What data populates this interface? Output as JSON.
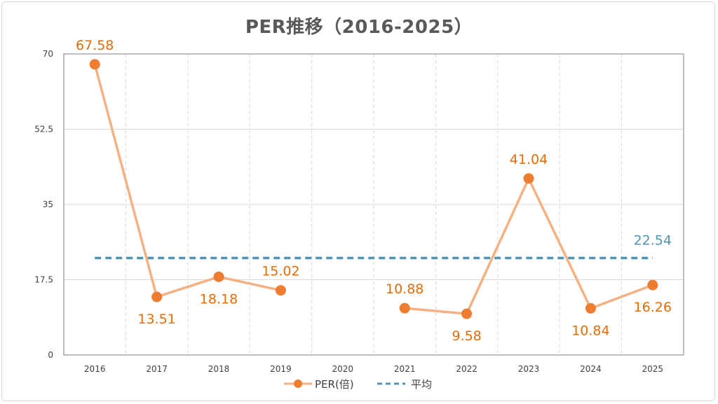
{
  "title": "PER推移（2016-2025）",
  "colors": {
    "line": "#f4b183",
    "marker": "#ed7d31",
    "label": "#e46c0a",
    "average": "#4f93b0",
    "grid": "#d9d9d9",
    "plot_border": "#7f7f7f"
  },
  "chart_data": {
    "type": "line",
    "title": "PER推移（2016-2025）",
    "categories": [
      "2016",
      "2017",
      "2018",
      "2019",
      "2020",
      "2021",
      "2022",
      "2023",
      "2024",
      "2025"
    ],
    "y_ticks": [
      "0",
      "17.5",
      "35",
      "52.5",
      "70"
    ],
    "ylim": [
      0,
      70
    ],
    "grid": true,
    "legend_position": "bottom",
    "series": [
      {
        "name": "PER(倍)",
        "values": [
          67.58,
          13.51,
          18.18,
          15.02,
          null,
          10.88,
          9.58,
          41.04,
          10.84,
          16.26
        ],
        "labels": [
          "67.58",
          "13.51",
          "18.18",
          "15.02",
          "",
          "10.88",
          "9.58",
          "41.04",
          "10.84",
          "16.26"
        ],
        "label_pos": [
          "above",
          "below",
          "below",
          "above",
          "",
          "above",
          "below",
          "above",
          "below",
          "below"
        ]
      },
      {
        "name": "平均",
        "value": 22.54,
        "label": "22.54",
        "style": "dashed"
      }
    ]
  }
}
